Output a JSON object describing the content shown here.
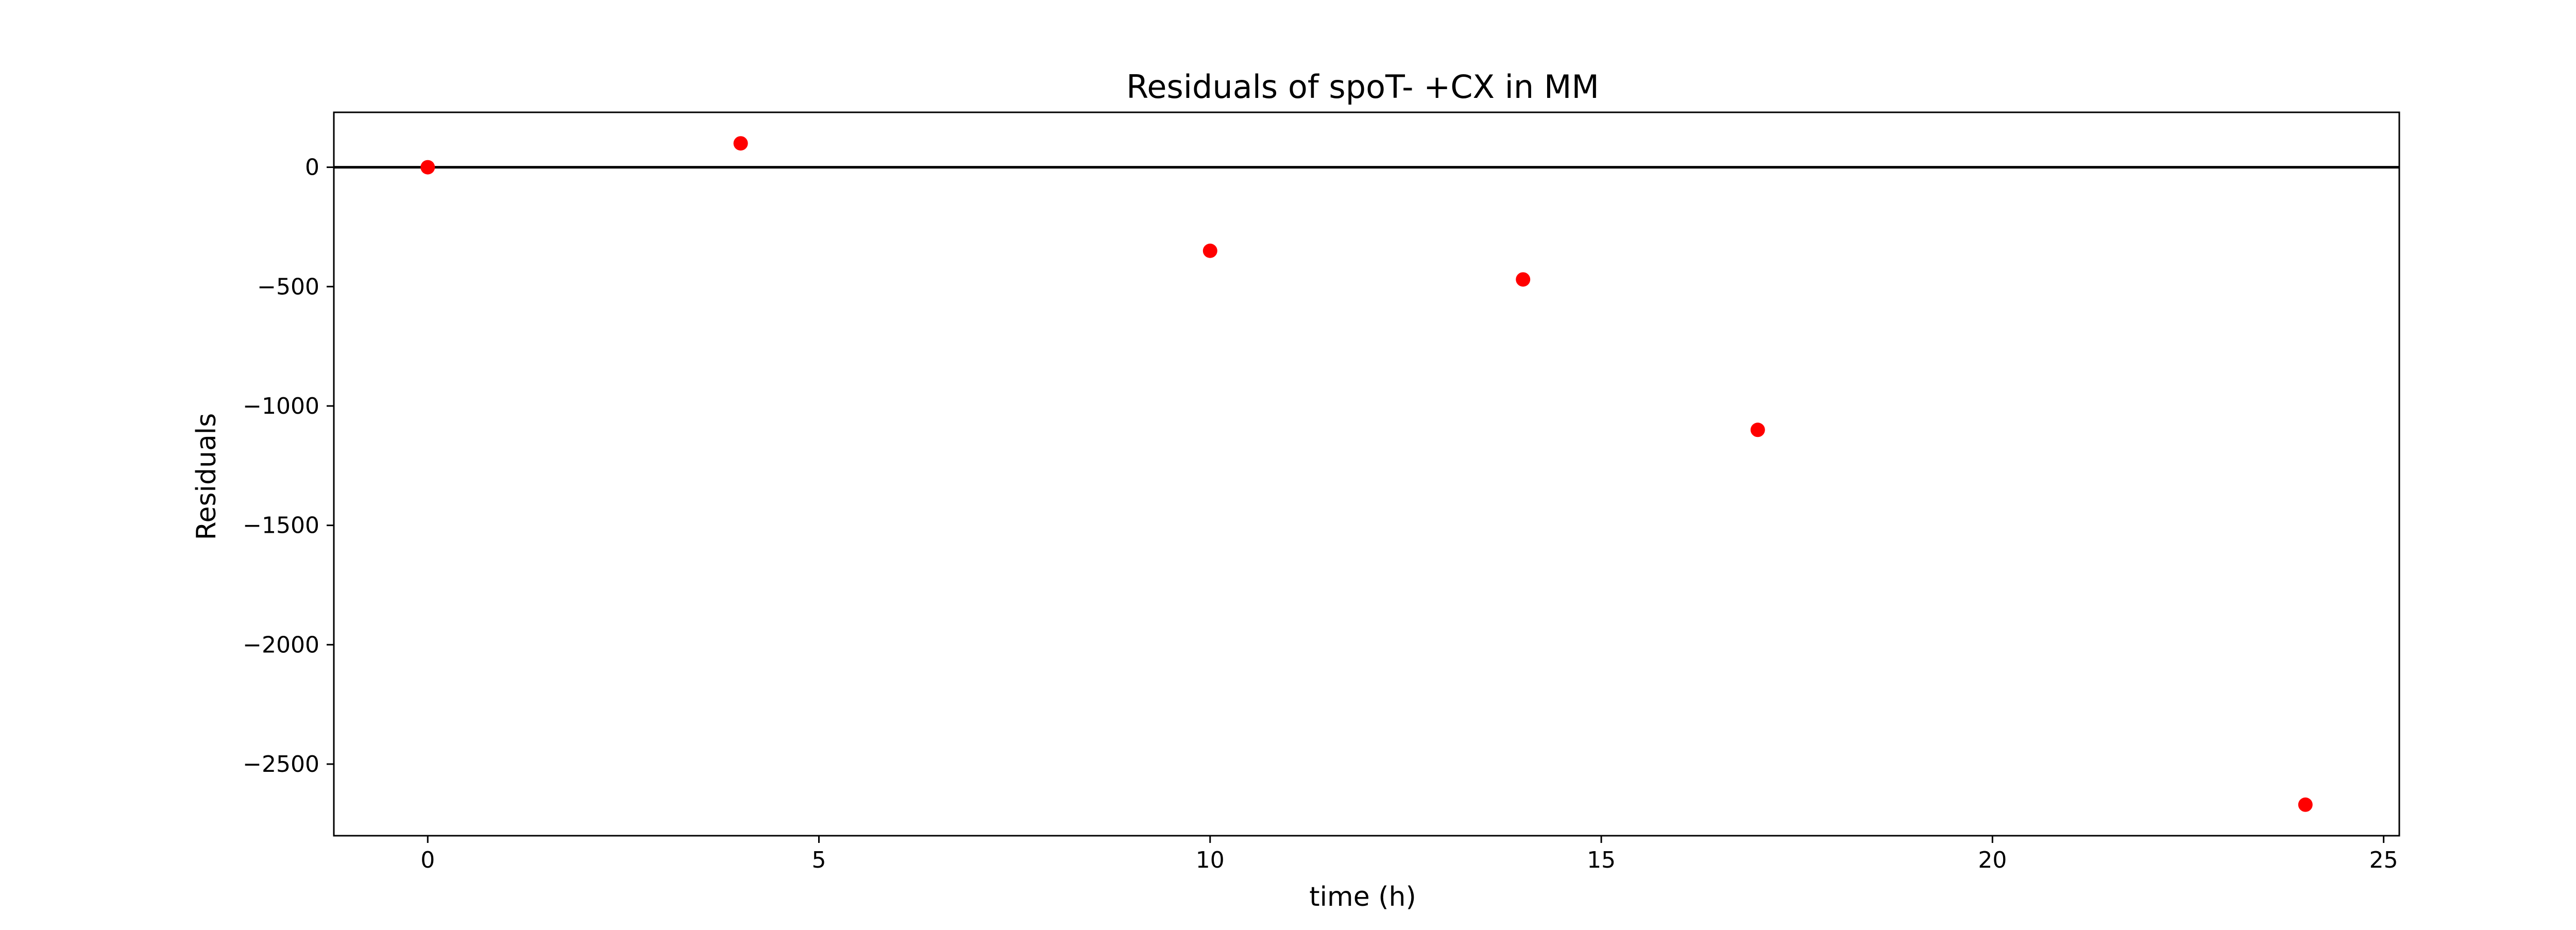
{
  "chart_data": {
    "type": "scatter",
    "title": "Residuals of spoT- +CX in MM",
    "xlabel": "time (h)",
    "ylabel": "Residuals",
    "xlim": [
      -1.2,
      25.2
    ],
    "ylim": [
      -2800,
      230
    ],
    "xticks": [
      0,
      5,
      10,
      15,
      20,
      25
    ],
    "xtick_labels": [
      "0",
      "5",
      "10",
      "15",
      "20",
      "25"
    ],
    "yticks": [
      0,
      -500,
      -1000,
      -1500,
      -2000,
      -2500
    ],
    "ytick_labels": [
      "0",
      "−500",
      "−1000",
      "−1500",
      "−2000",
      "−2500"
    ],
    "grid": false,
    "reference_line": {
      "y": 0,
      "color": "#000000"
    },
    "series": [
      {
        "color": "#ff0000",
        "marker": "circle",
        "x": [
          0,
          4,
          10,
          14,
          17,
          24
        ],
        "y": [
          0,
          100,
          -350,
          -470,
          -1100,
          -2670
        ]
      }
    ]
  }
}
